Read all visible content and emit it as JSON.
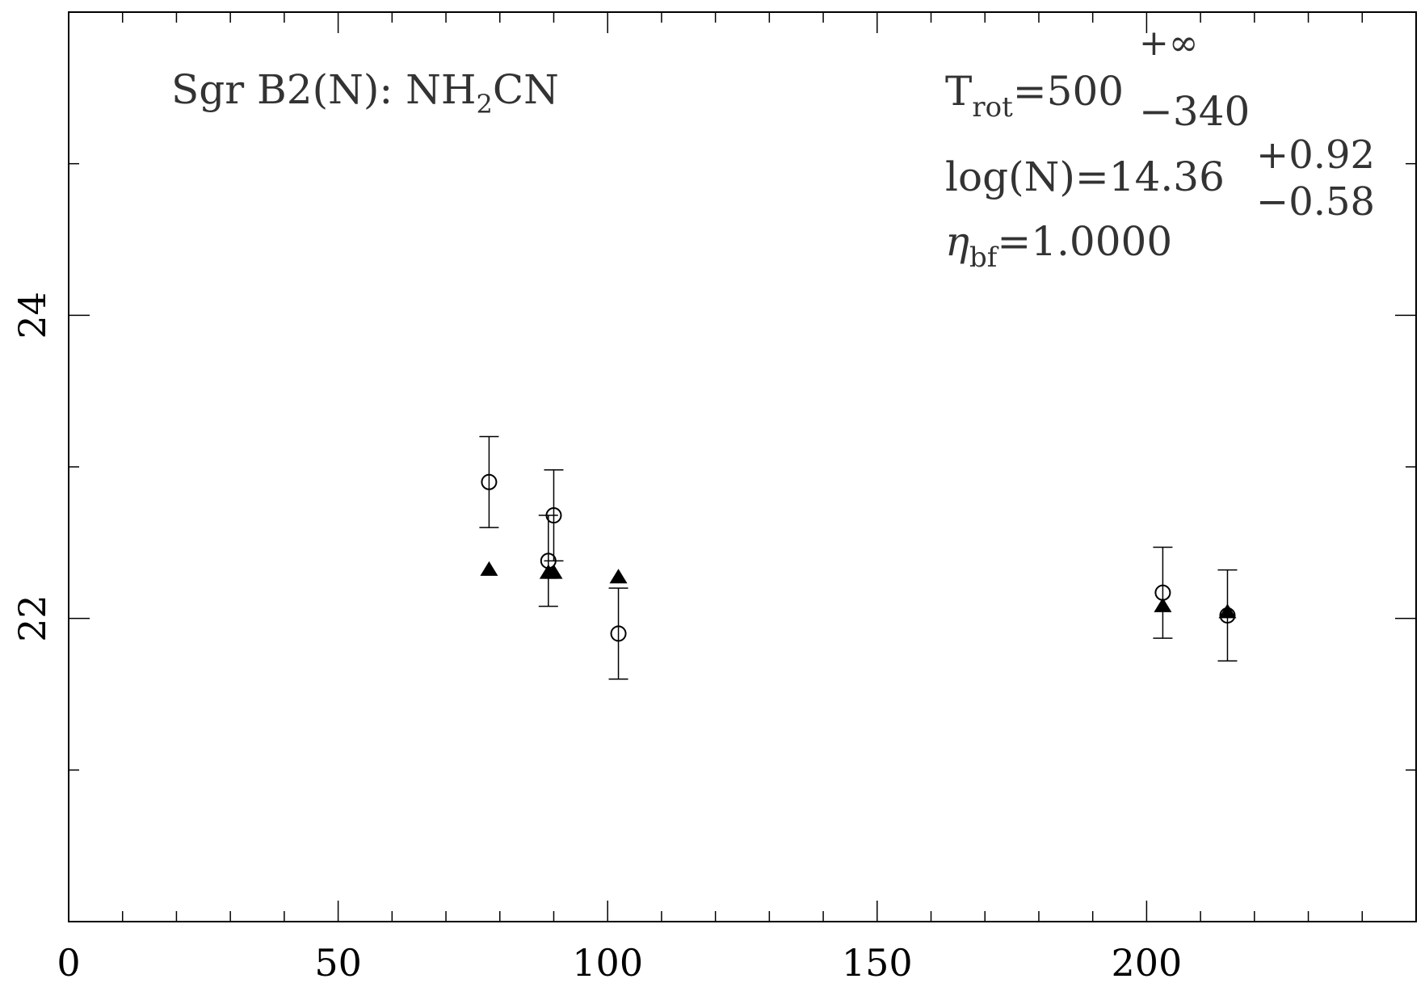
{
  "chart_data": {
    "type": "scatter",
    "title": "",
    "xlabel": "",
    "ylabel": "",
    "xlim": [
      0,
      250
    ],
    "ylim": [
      20,
      26
    ],
    "x_ticks_major": [
      0,
      50,
      100,
      150,
      200
    ],
    "x_tick_labels": [
      "0",
      "50",
      "100",
      "150",
      "200"
    ],
    "x_ticks_minor_step": 10,
    "y_ticks_major": [
      22,
      24
    ],
    "y_tick_labels": [
      "22",
      "24"
    ],
    "y_ticks_minor_step": 1,
    "series": [
      {
        "marker": "open-circle",
        "with_error_bars": true,
        "points": [
          {
            "x": 78,
            "y": 22.9,
            "err": 0.3
          },
          {
            "x": 89,
            "y": 22.38,
            "err": 0.3
          },
          {
            "x": 90,
            "y": 22.68,
            "err": 0.3
          },
          {
            "x": 102,
            "y": 21.9,
            "err": 0.3
          },
          {
            "x": 203,
            "y": 22.17,
            "err": 0.3
          },
          {
            "x": 215,
            "y": 22.02,
            "err": 0.3
          }
        ]
      },
      {
        "marker": "filled-triangle",
        "with_error_bars": false,
        "points": [
          {
            "x": 78,
            "y": 22.32
          },
          {
            "x": 89,
            "y": 22.3
          },
          {
            "x": 90,
            "y": 22.3
          },
          {
            "x": 102,
            "y": 22.27
          },
          {
            "x": 203,
            "y": 22.08
          },
          {
            "x": 215,
            "y": 22.04
          }
        ]
      }
    ],
    "annotations": {
      "source_label": {
        "main": "Sgr B2(N): NH",
        "sub": "2",
        "tail": "CN"
      },
      "trot": {
        "label": "T",
        "sub": "rot",
        "eq": "=500",
        "plus": "+∞",
        "minus": "−340"
      },
      "logn": {
        "text": "log(N)=14.36",
        "plus": "+0.92",
        "minus": "−0.58"
      },
      "eta": {
        "symbol": "η",
        "sub": "bf",
        "eq": "=1.0000"
      }
    }
  }
}
